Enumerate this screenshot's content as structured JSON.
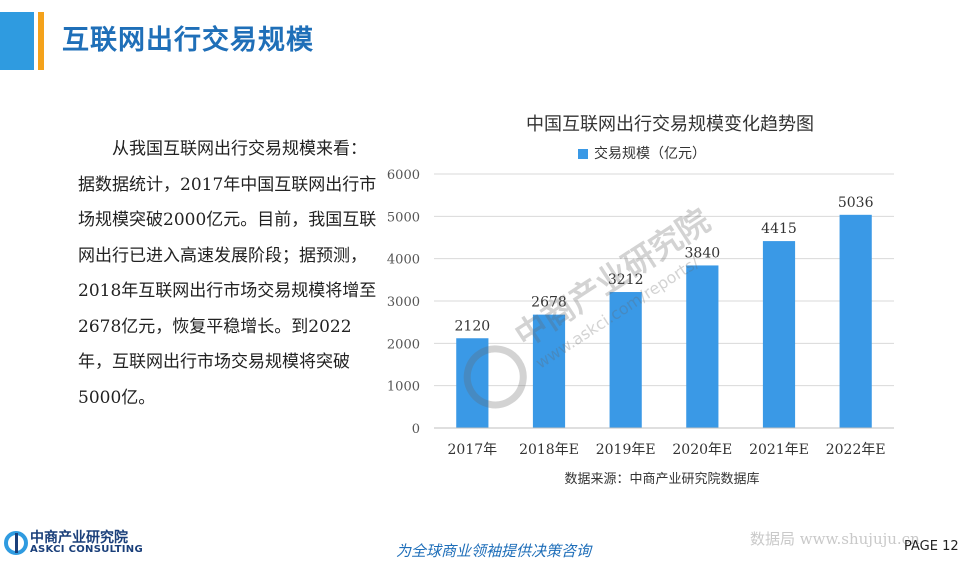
{
  "header": {
    "title": "互联网出行交易规模"
  },
  "paragraph": "从我国互联网出行交易规模来看：据数据统计，2017年中国互联网出行市场规模突破2000亿元。目前，我国互联网出行已进入高速发展阶段；据预测，2018年互联网出行市场交易规模将增至2678亿元，恢复平稳增长。到2022年，互联网出行市场交易规模将突破5000亿。",
  "chart_data": {
    "type": "bar",
    "title": "中国互联网出行交易规模变化趋势图",
    "categories": [
      "2017年",
      "2018年E",
      "2019年E",
      "2020年E",
      "2021年E",
      "2022年E"
    ],
    "series": [
      {
        "name": "交易规模（亿元）",
        "values": [
          2120,
          2678,
          3212,
          3840,
          4415,
          5036
        ],
        "color": "#3a99e6"
      }
    ],
    "ylim": [
      0,
      6000
    ],
    "yticks": [
      0,
      1000,
      2000,
      3000,
      4000,
      5000,
      6000
    ],
    "grid": true,
    "legend": "top",
    "source": "数据来源：中商产业研究院数据库"
  },
  "watermark": {
    "org": "中商产业研究院",
    "url": "www.askci.com/reports/",
    "bottom": "数据局 www.shujuju.cn"
  },
  "footer": {
    "logo_cn": "中商产业研究院",
    "logo_en": "ASKCI CONSULTING",
    "slogan": "为全球商业领袖提供决策咨询",
    "page": "PAGE 12"
  },
  "colors": {
    "accent_blue": "#2f9be0",
    "accent_orange": "#f4a21b",
    "title_blue": "#1f6fb8"
  }
}
